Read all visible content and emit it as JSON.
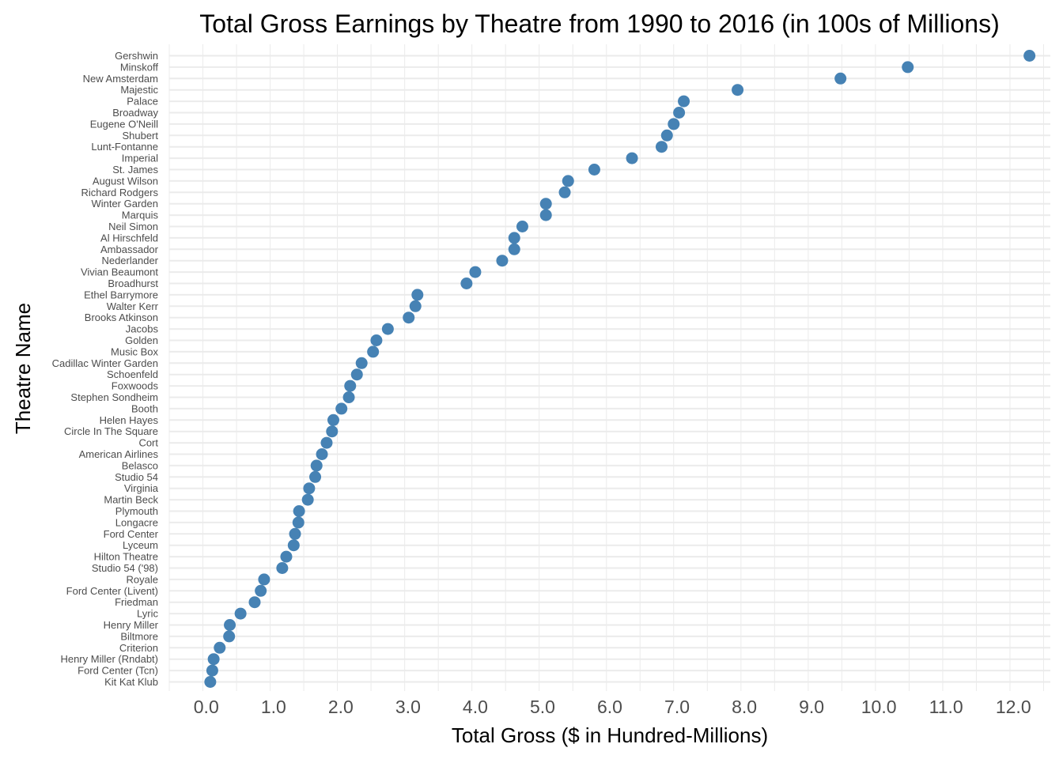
{
  "chart_data": {
    "type": "scatter",
    "title": "Total Gross Earnings by Theatre from 1990 to 2016 (in 100s of Millions)",
    "xlabel": "Total Gross ($ in Hundred-Millions)",
    "ylabel": "Theatre Name",
    "xlim": [
      -0.55,
      12.55
    ],
    "x_ticks": [
      "0.0",
      "1.0",
      "2.0",
      "3.0",
      "4.0",
      "5.0",
      "6.0",
      "7.0",
      "8.0",
      "9.0",
      "10.0",
      "11.0",
      "12.0"
    ],
    "grid": true,
    "legend": "none",
    "point_color": "#4682b4",
    "grid_color": "#ebebeb",
    "points": [
      {
        "name": "Gershwin",
        "value": 12.24
      },
      {
        "name": "Minskoff",
        "value": 10.43
      },
      {
        "name": "New Amsterdam",
        "value": 9.43
      },
      {
        "name": "Majestic",
        "value": 7.9
      },
      {
        "name": "Palace",
        "value": 7.1
      },
      {
        "name": "Broadway",
        "value": 7.03
      },
      {
        "name": "Eugene O'Neill",
        "value": 6.95
      },
      {
        "name": "Shubert",
        "value": 6.85
      },
      {
        "name": "Lunt-Fontanne",
        "value": 6.77
      },
      {
        "name": "Imperial",
        "value": 6.33
      },
      {
        "name": "St. James",
        "value": 5.77
      },
      {
        "name": "August Wilson",
        "value": 5.38
      },
      {
        "name": "Richard Rodgers",
        "value": 5.33
      },
      {
        "name": "Winter Garden",
        "value": 5.05
      },
      {
        "name": "Marquis",
        "value": 5.05
      },
      {
        "name": "Neil Simon",
        "value": 4.7
      },
      {
        "name": "Al Hirschfeld",
        "value": 4.58
      },
      {
        "name": "Ambassador",
        "value": 4.58
      },
      {
        "name": "Nederlander",
        "value": 4.4
      },
      {
        "name": "Vivian Beaumont",
        "value": 4.0
      },
      {
        "name": "Broadhurst",
        "value": 3.87
      },
      {
        "name": "Ethel Barrymore",
        "value": 3.14
      },
      {
        "name": "Walter Kerr",
        "value": 3.11
      },
      {
        "name": "Brooks Atkinson",
        "value": 3.01
      },
      {
        "name": "Jacobs",
        "value": 2.7
      },
      {
        "name": "Golden",
        "value": 2.53
      },
      {
        "name": "Music Box",
        "value": 2.48
      },
      {
        "name": "Cadillac Winter Garden",
        "value": 2.31
      },
      {
        "name": "Schoenfeld",
        "value": 2.24
      },
      {
        "name": "Foxwoods",
        "value": 2.14
      },
      {
        "name": "Stephen Sondheim",
        "value": 2.12
      },
      {
        "name": "Booth",
        "value": 2.01
      },
      {
        "name": "Helen Hayes",
        "value": 1.89
      },
      {
        "name": "Circle In The Square",
        "value": 1.87
      },
      {
        "name": "Cort",
        "value": 1.79
      },
      {
        "name": "American Airlines",
        "value": 1.72
      },
      {
        "name": "Belasco",
        "value": 1.64
      },
      {
        "name": "Studio 54",
        "value": 1.62
      },
      {
        "name": "Virginia",
        "value": 1.53
      },
      {
        "name": "Martin Beck",
        "value": 1.51
      },
      {
        "name": "Plymouth",
        "value": 1.38
      },
      {
        "name": "Longacre",
        "value": 1.37
      },
      {
        "name": "Ford Center",
        "value": 1.32
      },
      {
        "name": "Lyceum",
        "value": 1.3
      },
      {
        "name": "Hilton Theatre",
        "value": 1.19
      },
      {
        "name": "Studio 54 ('98)",
        "value": 1.13
      },
      {
        "name": "Royale",
        "value": 0.86
      },
      {
        "name": "Ford Center (Livent)",
        "value": 0.81
      },
      {
        "name": "Friedman",
        "value": 0.72
      },
      {
        "name": "Lyric",
        "value": 0.51
      },
      {
        "name": "Henry Miller",
        "value": 0.35
      },
      {
        "name": "Biltmore",
        "value": 0.34
      },
      {
        "name": "Criterion",
        "value": 0.2
      },
      {
        "name": "Henry Miller (Rndabt)",
        "value": 0.11
      },
      {
        "name": "Ford Center (Tcn)",
        "value": 0.09
      },
      {
        "name": "Kit Kat Klub",
        "value": 0.06
      }
    ]
  }
}
